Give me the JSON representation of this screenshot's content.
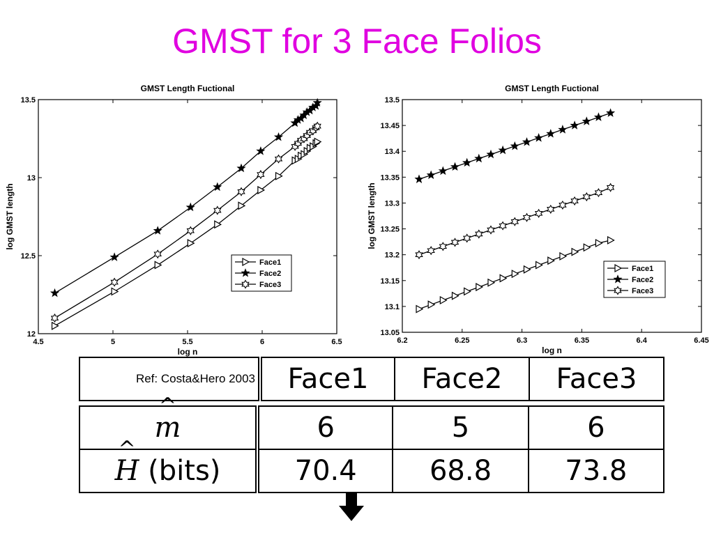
{
  "slide": {
    "title": "GMST for 3 Face Folios"
  },
  "chart_data": [
    {
      "type": "line",
      "title": "GMST Length Fuctional",
      "xlabel": "log n",
      "ylabel": "log GMST length",
      "xlim": [
        4.5,
        6.5
      ],
      "ylim": [
        12,
        13.5
      ],
      "xticks": [
        4.5,
        5,
        5.5,
        6,
        6.5
      ],
      "yticks": [
        12,
        12.5,
        13,
        13.5
      ],
      "legend_position": "lower-right",
      "grid": false,
      "series": [
        {
          "name": "Face1",
          "marker": "triangle-right",
          "x": [
            4.61,
            5.01,
            5.3,
            5.52,
            5.7,
            5.86,
            5.99,
            6.11,
            6.22,
            6.24,
            6.26,
            6.28,
            6.3,
            6.32,
            6.34,
            6.36,
            6.37
          ],
          "y": [
            12.05,
            12.27,
            12.44,
            12.58,
            12.7,
            12.82,
            12.92,
            13.01,
            13.11,
            13.12,
            13.14,
            13.15,
            13.17,
            13.19,
            13.2,
            13.22,
            13.23
          ]
        },
        {
          "name": "Face2",
          "marker": "star",
          "x": [
            4.61,
            5.01,
            5.3,
            5.52,
            5.7,
            5.86,
            5.99,
            6.11,
            6.22,
            6.24,
            6.26,
            6.28,
            6.3,
            6.32,
            6.34,
            6.36,
            6.37
          ],
          "y": [
            12.26,
            12.49,
            12.66,
            12.81,
            12.94,
            13.06,
            13.17,
            13.26,
            13.35,
            13.37,
            13.38,
            13.4,
            13.42,
            13.43,
            13.45,
            13.46,
            13.48
          ]
        },
        {
          "name": "Face3",
          "marker": "hexagram",
          "x": [
            4.61,
            5.01,
            5.3,
            5.52,
            5.7,
            5.86,
            5.99,
            6.11,
            6.22,
            6.24,
            6.26,
            6.28,
            6.3,
            6.32,
            6.34,
            6.36,
            6.37
          ],
          "y": [
            12.1,
            12.33,
            12.51,
            12.66,
            12.79,
            12.91,
            13.02,
            13.12,
            13.2,
            13.22,
            13.24,
            13.25,
            13.27,
            13.29,
            13.3,
            13.32,
            13.33
          ]
        }
      ]
    },
    {
      "type": "line",
      "title": "GMST Length Fuctional",
      "xlabel": "log n",
      "ylabel": "log GMST length",
      "xlim": [
        6.2,
        6.45
      ],
      "ylim": [
        13.05,
        13.5
      ],
      "xticks": [
        6.2,
        6.25,
        6.3,
        6.35,
        6.4,
        6.45
      ],
      "yticks": [
        13.05,
        13.1,
        13.15,
        13.2,
        13.25,
        13.3,
        13.35,
        13.4,
        13.45,
        13.5
      ],
      "legend_position": "lower-right",
      "grid": false,
      "series": [
        {
          "name": "Face1",
          "marker": "triangle-right",
          "x": [
            6.214,
            6.224,
            6.234,
            6.244,
            6.254,
            6.264,
            6.274,
            6.284,
            6.294,
            6.304,
            6.314,
            6.324,
            6.334,
            6.344,
            6.354,
            6.364,
            6.374
          ],
          "y": [
            13.095,
            13.1035,
            13.112,
            13.1205,
            13.129,
            13.1375,
            13.146,
            13.1545,
            13.163,
            13.1715,
            13.18,
            13.1885,
            13.197,
            13.2055,
            13.214,
            13.2225,
            13.228
          ]
        },
        {
          "name": "Face2",
          "marker": "star",
          "x": [
            6.214,
            6.224,
            6.234,
            6.244,
            6.254,
            6.264,
            6.274,
            6.284,
            6.294,
            6.304,
            6.314,
            6.324,
            6.334,
            6.344,
            6.354,
            6.364,
            6.374
          ],
          "y": [
            13.346,
            13.354,
            13.362,
            13.37,
            13.378,
            13.386,
            13.394,
            13.402,
            13.41,
            13.418,
            13.426,
            13.434,
            13.442,
            13.45,
            13.458,
            13.466,
            13.474
          ]
        },
        {
          "name": "Face3",
          "marker": "hexagram",
          "x": [
            6.214,
            6.224,
            6.234,
            6.244,
            6.254,
            6.264,
            6.274,
            6.284,
            6.294,
            6.304,
            6.314,
            6.324,
            6.334,
            6.344,
            6.354,
            6.364,
            6.374
          ],
          "y": [
            13.2,
            13.208,
            13.216,
            13.224,
            13.232,
            13.24,
            13.248,
            13.256,
            13.264,
            13.272,
            13.28,
            13.288,
            13.296,
            13.304,
            13.312,
            13.32,
            13.33
          ]
        }
      ]
    }
  ],
  "table": {
    "ref_note": "Ref: Costa&Hero 2003",
    "headers": [
      "Face1",
      "Face2",
      "Face3"
    ],
    "rows": [
      {
        "symbol": "m",
        "hat": "^",
        "unit": "",
        "values": [
          "6",
          "5",
          "6"
        ]
      },
      {
        "symbol": "H",
        "hat": "^",
        "unit": "(bits)",
        "values": [
          "70.4",
          "68.8",
          "73.8"
        ]
      }
    ]
  },
  "arrow": {
    "icon": "down-arrow-icon",
    "color": "#000000"
  }
}
